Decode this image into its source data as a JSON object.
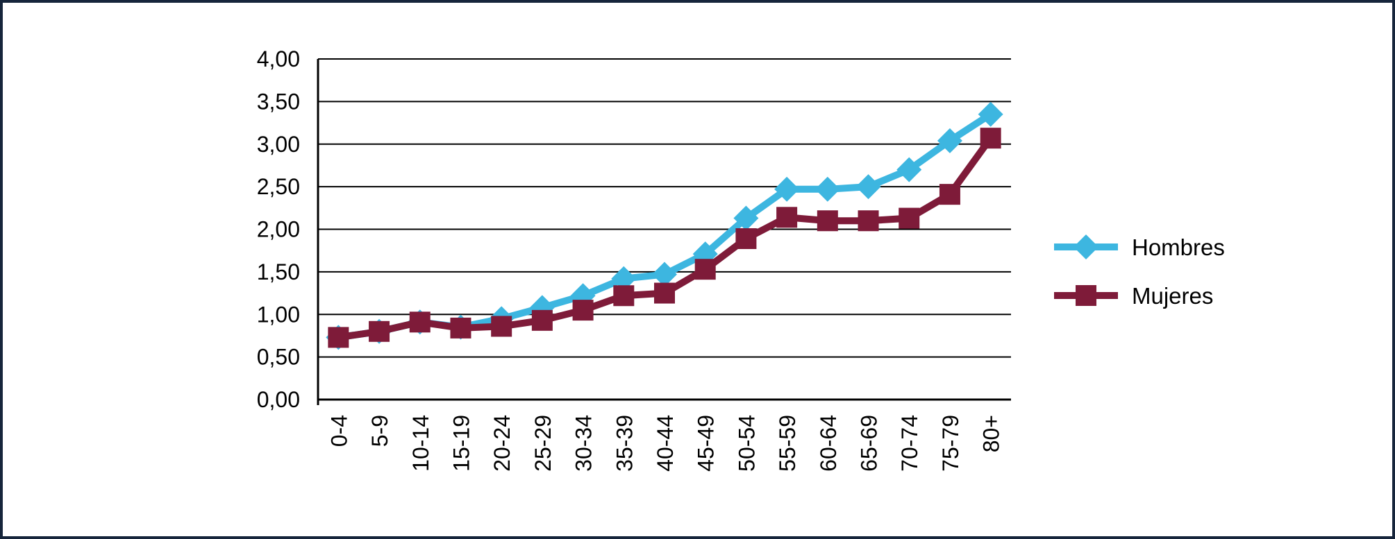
{
  "chart_data": {
    "type": "line",
    "title": "",
    "xlabel": "",
    "ylabel": "",
    "categories": [
      "0-4",
      "5-9",
      "10-14",
      "15-19",
      "20-24",
      "25-29",
      "30-34",
      "35-39",
      "40-44",
      "45-49",
      "50-54",
      "55-59",
      "60-64",
      "65-69",
      "70-74",
      "75-79",
      "80+"
    ],
    "series": [
      {
        "name": "Hombres",
        "marker": "diamond",
        "color": "#3DB6E0",
        "values": [
          0.73,
          0.8,
          0.91,
          0.85,
          0.95,
          1.08,
          1.22,
          1.42,
          1.47,
          1.71,
          2.13,
          2.47,
          2.47,
          2.5,
          2.7,
          3.04,
          3.35
        ]
      },
      {
        "name": "Mujeres",
        "marker": "square",
        "color": "#7E1B39",
        "values": [
          0.73,
          0.8,
          0.91,
          0.84,
          0.86,
          0.93,
          1.05,
          1.22,
          1.25,
          1.53,
          1.89,
          2.14,
          2.1,
          2.1,
          2.13,
          2.41,
          3.07
        ]
      }
    ],
    "ylim": [
      0,
      4
    ],
    "ytick_step": 0.5,
    "y_tick_labels": [
      "0,00",
      "0,50",
      "1,00",
      "1,50",
      "2,00",
      "2,50",
      "3,00",
      "3,50",
      "4,00"
    ],
    "grid": true,
    "legend_position": "right",
    "x_labels_rotation_deg": -90
  },
  "colors": {
    "hombres": "#3DB6E0",
    "mujeres": "#7E1B39",
    "frame_border": "#16253B",
    "grid_line": "#000000",
    "text": "#000000"
  }
}
